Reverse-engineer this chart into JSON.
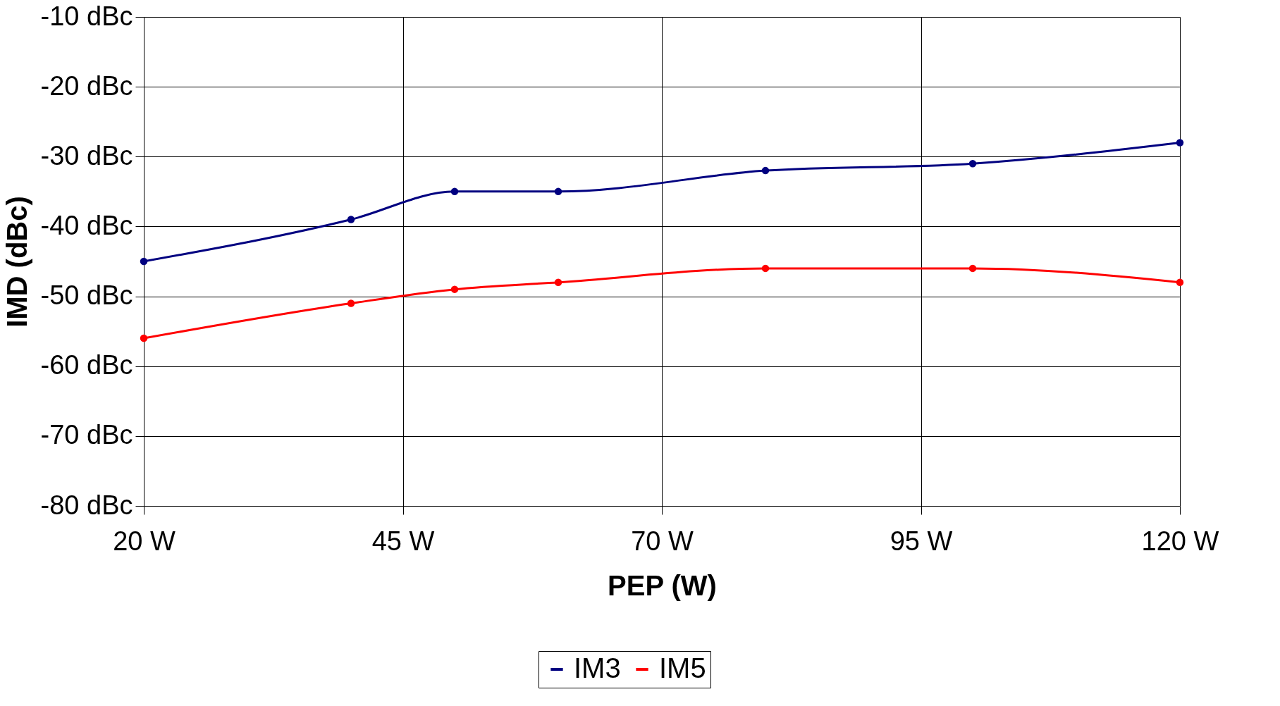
{
  "chart_data": {
    "type": "line",
    "xlabel": "PEP (W)",
    "ylabel": "IMD (dBc)",
    "x": [
      20,
      40,
      50,
      60,
      80,
      100,
      120
    ],
    "series": [
      {
        "name": "IM3",
        "color": "#000080",
        "values": [
          -45,
          -39,
          -35,
          -35,
          -32,
          -31,
          -28
        ]
      },
      {
        "name": "IM5",
        "color": "#ff0000",
        "values": [
          -56,
          -51,
          -49,
          -48,
          -46,
          -46,
          -48
        ]
      }
    ],
    "xlim": [
      20,
      120
    ],
    "xticks": [
      {
        "value": 20,
        "label": "20 W"
      },
      {
        "value": 45,
        "label": "45 W"
      },
      {
        "value": 70,
        "label": "70 W"
      },
      {
        "value": 95,
        "label": "95 W"
      },
      {
        "value": 120,
        "label": "120 W"
      }
    ],
    "ylim": [
      -80,
      -10
    ],
    "yticks": [
      {
        "value": -80,
        "label": "-80 dBc"
      },
      {
        "value": -70,
        "label": "-70 dBc"
      },
      {
        "value": -60,
        "label": "-60 dBc"
      },
      {
        "value": -50,
        "label": "-50 dBc"
      },
      {
        "value": -40,
        "label": "-40 dBc"
      },
      {
        "value": -30,
        "label": "-30 dBc"
      },
      {
        "value": -20,
        "label": "-20 dBc"
      },
      {
        "value": -10,
        "label": "-10 dBc"
      }
    ],
    "grid": true,
    "legend": "bottom",
    "marker": "circle",
    "line_style": "solid"
  }
}
